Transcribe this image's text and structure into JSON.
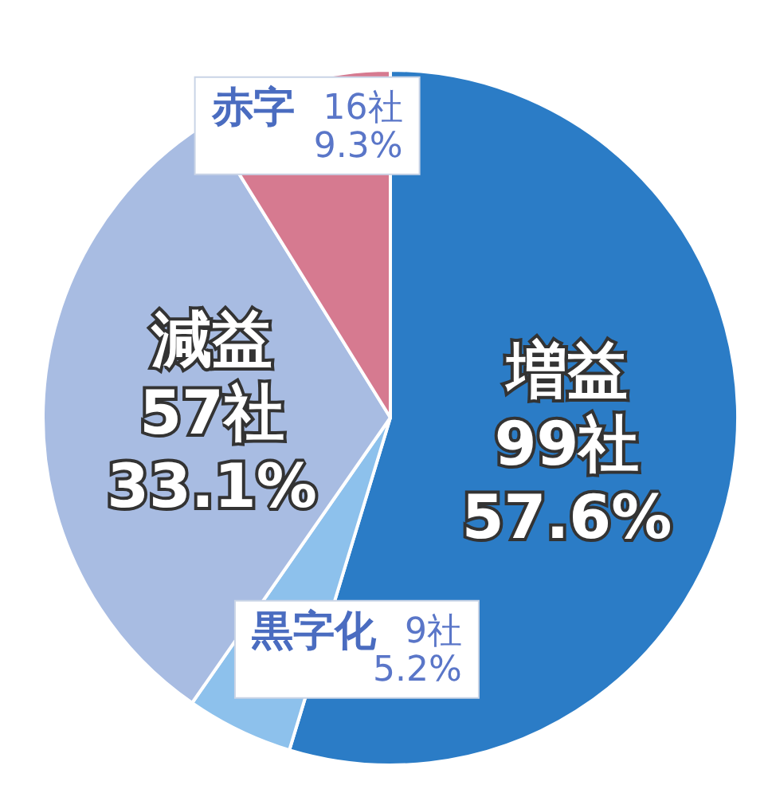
{
  "chart_data": {
    "type": "pie",
    "categories": [
      "増益",
      "黒字化",
      "減益",
      "赤字"
    ],
    "values": [
      99,
      9,
      57,
      16
    ],
    "value_labels": [
      "99社\n57.6%",
      "9社\n5.2%",
      "57社\n33.1%",
      "16社\n9.3%"
    ],
    "colors": [
      "#2b7cc6",
      "#8dc1ec",
      "#a8bce2",
      "#d67a90"
    ],
    "legend": false
  }
}
